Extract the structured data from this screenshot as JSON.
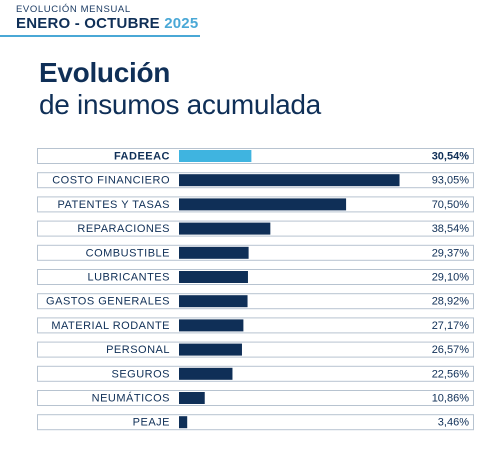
{
  "header": {
    "subtitle": "EVOLUCIÓN MENSUAL",
    "period": "ENERO - OCTUBRE",
    "year": "2025"
  },
  "title": {
    "line1": "Evolución",
    "line2": "de insumos acumulada"
  },
  "colors": {
    "highlight": "#3fb4e0",
    "bar": "#0f2f57",
    "border": "#b7c3d0",
    "accent": "#4aa8d6"
  },
  "chart_data": {
    "type": "bar",
    "orientation": "horizontal",
    "categories": [
      "FADEEAC",
      "COSTO FINANCIERO",
      "PATENTES Y TASAS",
      "REPARACIONES",
      "COMBUSTIBLE",
      "LUBRICANTES",
      "GASTOS GENERALES",
      "MATERIAL RODANTE",
      "PERSONAL",
      "SEGUROS",
      "NEUMÁTICOS",
      "PEAJE"
    ],
    "values": [
      30.54,
      93.05,
      70.5,
      38.54,
      29.37,
      29.1,
      28.92,
      27.17,
      26.57,
      22.56,
      10.86,
      3.46
    ],
    "value_labels": [
      "30,54%",
      "93,05%",
      "70,50%",
      "38,54%",
      "29,37%",
      "29,10%",
      "28,92%",
      "27,17%",
      "26,57%",
      "22,56%",
      "10,86%",
      "3,46%"
    ],
    "highlight_index": 0,
    "xlim": [
      0,
      100
    ]
  }
}
